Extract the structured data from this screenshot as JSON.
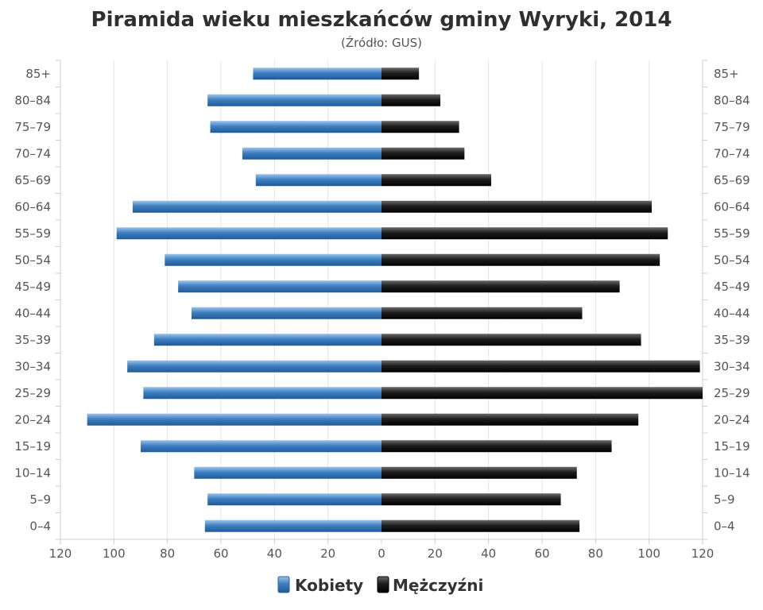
{
  "chart_data": {
    "type": "bar",
    "orientation": "horizontal-pyramid",
    "title": "Piramida wieku mieszkańców gminy Wyryki, 2014",
    "subtitle": "(Źródło: GUS)",
    "categories": [
      "0–4",
      "5–9",
      "10–14",
      "15–19",
      "20–24",
      "25–29",
      "30–34",
      "35–39",
      "40–44",
      "45–49",
      "50–54",
      "55–59",
      "60–64",
      "65–69",
      "70–74",
      "75–79",
      "80–84",
      "85+"
    ],
    "series": [
      {
        "name": "Kobiety",
        "color": "#3a79b8",
        "side": "left",
        "values": [
          66,
          65,
          70,
          90,
          110,
          89,
          95,
          85,
          71,
          76,
          81,
          99,
          93,
          47,
          52,
          64,
          65,
          48
        ]
      },
      {
        "name": "Mężczyźni",
        "color": "#1a1a1a",
        "side": "right",
        "values": [
          74,
          67,
          73,
          86,
          96,
          120,
          119,
          97,
          75,
          89,
          104,
          107,
          101,
          41,
          31,
          29,
          22,
          14
        ]
      }
    ],
    "xlim": [
      -120,
      120
    ],
    "x_ticks": [
      -120,
      -100,
      -80,
      -60,
      -40,
      -20,
      0,
      20,
      40,
      60,
      80,
      100,
      120
    ],
    "x_tick_labels": [
      "120",
      "100",
      "80",
      "60",
      "40",
      "20",
      "0",
      "20",
      "40",
      "60",
      "80",
      "100",
      "120"
    ],
    "grid": true,
    "legend_position": "bottom-center"
  }
}
